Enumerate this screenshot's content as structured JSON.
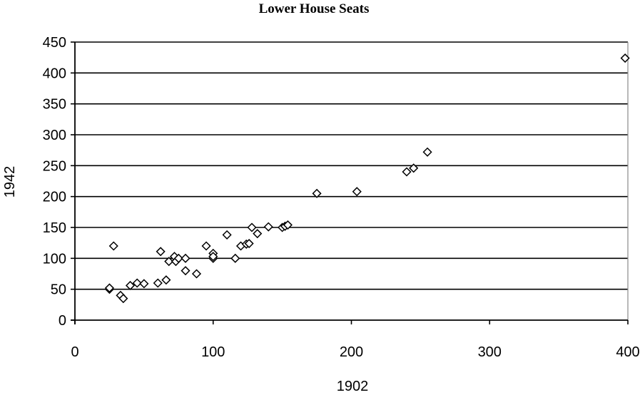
{
  "chart_data": {
    "type": "scatter",
    "title": "Lower House Seats",
    "xlabel": "1902",
    "ylabel": "1942",
    "xlim": [
      0,
      400
    ],
    "ylim": [
      0,
      450
    ],
    "xticks": [
      0,
      100,
      200,
      300,
      400
    ],
    "yticks": [
      0,
      50,
      100,
      150,
      200,
      250,
      300,
      350,
      400,
      450
    ],
    "grid": "horizontal",
    "marker": "open-diamond",
    "points": [
      [
        25,
        50
      ],
      [
        25,
        52
      ],
      [
        28,
        120
      ],
      [
        33,
        40
      ],
      [
        35,
        35
      ],
      [
        40,
        56
      ],
      [
        45,
        60
      ],
      [
        50,
        59
      ],
      [
        60,
        60
      ],
      [
        62,
        111
      ],
      [
        66,
        65
      ],
      [
        68,
        95
      ],
      [
        72,
        103
      ],
      [
        73,
        95
      ],
      [
        75,
        100
      ],
      [
        80,
        100
      ],
      [
        80,
        80
      ],
      [
        88,
        75
      ],
      [
        95,
        120
      ],
      [
        100,
        100
      ],
      [
        100,
        108
      ],
      [
        100,
        103
      ],
      [
        110,
        138
      ],
      [
        116,
        100
      ],
      [
        120,
        120
      ],
      [
        124,
        123
      ],
      [
        126,
        124
      ],
      [
        128,
        150
      ],
      [
        132,
        140
      ],
      [
        140,
        151
      ],
      [
        150,
        150
      ],
      [
        152,
        152
      ],
      [
        154,
        154
      ],
      [
        175,
        205
      ],
      [
        204,
        208
      ],
      [
        240,
        240
      ],
      [
        245,
        246
      ],
      [
        255,
        272
      ],
      [
        398,
        424
      ]
    ]
  }
}
